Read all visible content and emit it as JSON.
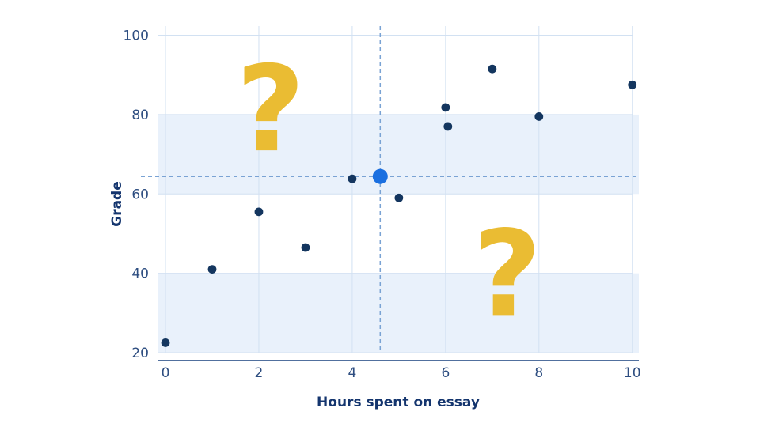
{
  "chart_data": {
    "type": "scatter",
    "title": "",
    "xlabel": "Hours spent on essay",
    "ylabel": "Grade",
    "x_ticks": [
      0,
      2,
      4,
      6,
      8,
      10
    ],
    "y_ticks": [
      20,
      40,
      60,
      80,
      100
    ],
    "xlim": [
      -0.17,
      10.14
    ],
    "ylim": [
      20,
      102.3
    ],
    "grid": true,
    "legend_position": "none",
    "shaded_bands": [
      {
        "from": 20,
        "to": 40
      },
      {
        "from": 60,
        "to": 80
      }
    ],
    "points": [
      {
        "x": 0.0,
        "y": 22.5
      },
      {
        "x": 1.0,
        "y": 41.0
      },
      {
        "x": 2.0,
        "y": 55.5
      },
      {
        "x": 3.0,
        "y": 46.5
      },
      {
        "x": 4.0,
        "y": 63.8
      },
      {
        "x": 5.0,
        "y": 59.0
      },
      {
        "x": 6.0,
        "y": 81.8
      },
      {
        "x": 6.05,
        "y": 77.0
      },
      {
        "x": 7.0,
        "y": 91.5
      },
      {
        "x": 8.0,
        "y": 79.5
      },
      {
        "x": 10.0,
        "y": 87.5
      }
    ],
    "highlighted_point": {
      "x": 4.6,
      "y": 64.4
    },
    "crosshair": {
      "x": 4.6,
      "y": 64.4
    },
    "question_marks": [
      {
        "glyph": "?",
        "x": 2.25,
        "y": 71.0
      },
      {
        "glyph": "?",
        "x": 7.32,
        "y": 29.5
      }
    ]
  },
  "colors": {
    "background": "#ffffff",
    "band": "#e9f1fb",
    "grid": "#d2e1f2",
    "axis": "#51709e",
    "tick_label": "#2d4d80",
    "axis_title": "#14356e",
    "point": "#14365f",
    "highlight": "#1a6fe0",
    "crosshair": "#7aa3d4",
    "question_mark": "#eabc33"
  }
}
